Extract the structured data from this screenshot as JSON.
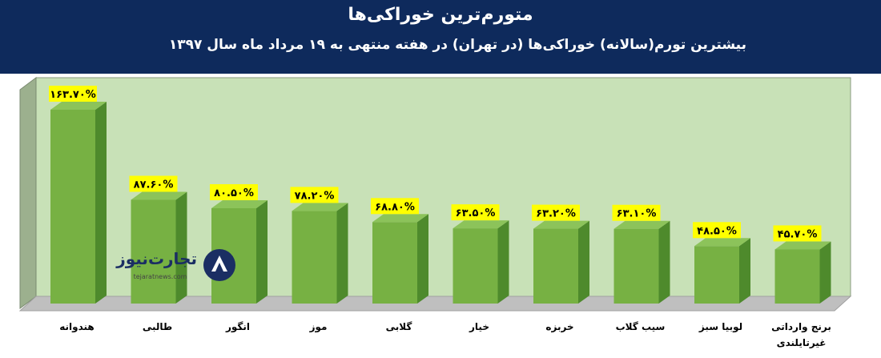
{
  "header": {
    "title": "متورم‌ترین خوراکی‌ها",
    "subtitle": "بیشترین تورم(سالانه) خوراکی‌ها (در تهران) در هفته منتهی به ۱۹ مرداد ماه سال ۱۳۹۷"
  },
  "logo": {
    "name": "تجارت‌نیوز",
    "url": "tejaratnews.com",
    "icon": "tejaratnews-logo-icon"
  },
  "colors": {
    "header_bg": "#0e2a5c",
    "plot_bg": "#c8e1b7",
    "bar_front": "#77b143",
    "bar_side": "#4e8a2c",
    "floor": "#bfbfbf",
    "label_bg": "#ffff00"
  },
  "chart_data": {
    "type": "bar",
    "categories": [
      "هندوانه",
      "طالبی",
      "انگور",
      "موز",
      "گلابی",
      "خیار",
      "خربزه",
      "سیب گلاب",
      "لوبیا سبز",
      "برنج وارداتی غیرتایلندی"
    ],
    "category_lines": [
      [
        "هندوانه"
      ],
      [
        "طالبی"
      ],
      [
        "انگور"
      ],
      [
        "موز"
      ],
      [
        "گلابی"
      ],
      [
        "خیار"
      ],
      [
        "خربزه"
      ],
      [
        "سیب گلاب"
      ],
      [
        "لوبیا سبز"
      ],
      [
        "برنج وارداتی",
        "غیرتایلندی"
      ]
    ],
    "values": [
      163.7,
      87.6,
      80.5,
      78.2,
      68.8,
      63.5,
      63.2,
      63.1,
      48.5,
      45.7
    ],
    "data_labels": [
      "۱۶۳.۷۰%",
      "۸۷.۶۰%",
      "۸۰.۵۰%",
      "۷۸.۲۰%",
      "۶۸.۸۰%",
      "۶۳.۵۰%",
      "۶۳.۲۰%",
      "۶۳.۱۰%",
      "۴۸.۵۰%",
      "۴۵.۷۰%"
    ],
    "ylim": [
      0,
      175
    ],
    "grid": false,
    "style": "3d-column"
  }
}
